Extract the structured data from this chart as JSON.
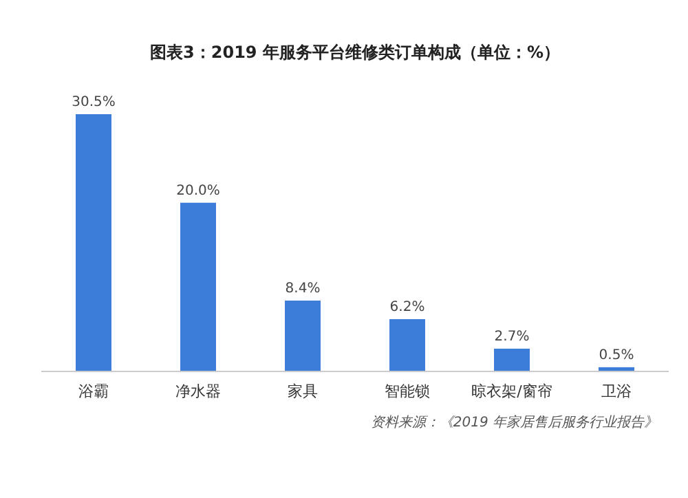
{
  "chart_data": {
    "type": "bar",
    "title": "图表3：2019 年服务平台维修类订单构成（单位：%）",
    "categories": [
      "浴霸",
      "净水器",
      "家具",
      "智能锁",
      "晾衣架/窗帘",
      "卫浴"
    ],
    "values": [
      30.5,
      20.0,
      8.4,
      6.2,
      2.7,
      0.5
    ],
    "value_labels": [
      "30.5%",
      "20.0%",
      "8.4%",
      "6.2%",
      "2.7%",
      "0.5%"
    ],
    "color": "#3b7dd8",
    "annotations": [
      "资料来源：《2019 年家居售后服务行业报告》"
    ]
  }
}
